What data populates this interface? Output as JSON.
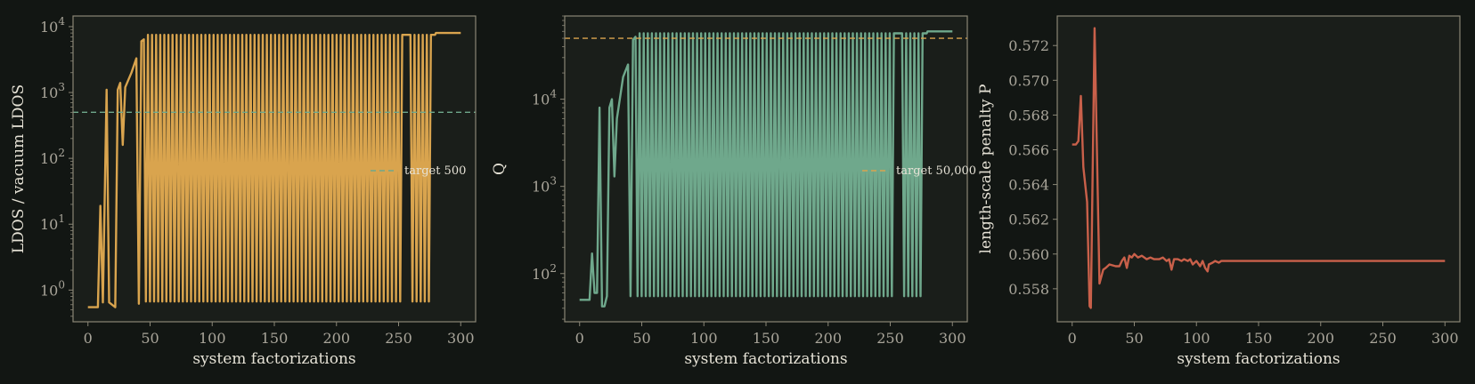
{
  "colors": {
    "background": "#121613",
    "panel": "#1a1e1a",
    "spine": "#8a8676",
    "tick_text": "#a9a59a",
    "label_text": "#e6e2d6"
  },
  "chart_data": [
    {
      "type": "line",
      "xlabel": "system factorizations",
      "ylabel": "LDOS / vacuum LDOS",
      "yscale": "log",
      "xlim": [
        -12,
        312
      ],
      "ylim": [
        0.33,
        14500
      ],
      "xticks": [
        0,
        50,
        100,
        150,
        200,
        250,
        300
      ],
      "yticks": [
        {
          "value": 1,
          "mantissa": "10",
          "exp": "0"
        },
        {
          "value": 10,
          "mantissa": "10",
          "exp": "1"
        },
        {
          "value": 100,
          "mantissa": "10",
          "exp": "2"
        },
        {
          "value": 1000,
          "mantissa": "10",
          "exp": "3"
        },
        {
          "value": 10000,
          "mantissa": "10",
          "exp": "4"
        }
      ],
      "grid": false,
      "legend_position": "center-right",
      "series": [
        {
          "color": "#d9a44e",
          "style": "solid",
          "seed_points": [
            [
              0,
              0.55
            ],
            [
              8,
              0.55
            ],
            [
              10,
              19
            ],
            [
              12,
              0.65
            ],
            [
              15,
              1100
            ],
            [
              17,
              0.65
            ],
            [
              22,
              0.55
            ],
            [
              24,
              1100
            ],
            [
              26,
              1400
            ],
            [
              28,
              160
            ],
            [
              30,
              1200
            ],
            [
              35,
              2000
            ],
            [
              39,
              3300
            ],
            [
              41,
              0.62
            ],
            [
              43,
              6000
            ],
            [
              45,
              6400
            ]
          ],
          "oscillation": {
            "start": 45,
            "end": 280,
            "period": 3.3,
            "high": 7500,
            "low": 0.67,
            "flat_low": [
              [
                255,
                256
              ],
              [
                278,
                279
              ]
            ]
          },
          "tail": [
            [
              280,
              8000
            ],
            [
              300,
              8000
            ]
          ]
        },
        {
          "name": "target 500",
          "color": "#6fa88c",
          "style": "dashed",
          "hline": 500
        }
      ]
    },
    {
      "type": "line",
      "xlabel": "system factorizations",
      "ylabel": "Q",
      "yscale": "log",
      "xlim": [
        -12,
        312
      ],
      "ylim": [
        28,
        90000
      ],
      "xticks": [
        0,
        50,
        100,
        150,
        200,
        250,
        300
      ],
      "yticks": [
        {
          "value": 100,
          "mantissa": "10",
          "exp": "2"
        },
        {
          "value": 1000,
          "mantissa": "10",
          "exp": "3"
        },
        {
          "value": 10000,
          "mantissa": "10",
          "exp": "4"
        }
      ],
      "grid": false,
      "legend_position": "center-right",
      "series": [
        {
          "color": "#6fa88c",
          "style": "solid",
          "seed_points": [
            [
              0,
              50
            ],
            [
              8,
              50
            ],
            [
              10,
              170
            ],
            [
              12,
              60
            ],
            [
              14,
              60
            ],
            [
              16,
              8000
            ],
            [
              18,
              42
            ],
            [
              20,
              42
            ],
            [
              22,
              55
            ],
            [
              24,
              8000
            ],
            [
              26,
              10000
            ],
            [
              28,
              1300
            ],
            [
              30,
              6000
            ],
            [
              35,
              18000
            ],
            [
              39,
              25000
            ],
            [
              41,
              55
            ],
            [
              43,
              48000
            ],
            [
              45,
              52000
            ]
          ],
          "oscillation": {
            "start": 45,
            "end": 280,
            "period": 3.3,
            "high": 57000,
            "low": 55,
            "flat_low": [
              [
                255,
                256
              ],
              [
                278,
                279
              ]
            ]
          },
          "tail": [
            [
              280,
              60000
            ],
            [
              300,
              60000
            ]
          ]
        },
        {
          "name": "target 50,000",
          "color": "#d9a44e",
          "style": "dashed",
          "hline": 50000
        }
      ]
    },
    {
      "type": "line",
      "xlabel": "system factorizations",
      "ylabel": "length-scale penalty P",
      "yscale": "linear",
      "xlim": [
        -12,
        312
      ],
      "ylim": [
        0.5561,
        0.5737
      ],
      "xticks": [
        0,
        50,
        100,
        150,
        200,
        250,
        300
      ],
      "yticks": [
        {
          "value": 0.558,
          "label": "0.558"
        },
        {
          "value": 0.56,
          "label": "0.560"
        },
        {
          "value": 0.562,
          "label": "0.562"
        },
        {
          "value": 0.564,
          "label": "0.564"
        },
        {
          "value": 0.566,
          "label": "0.566"
        },
        {
          "value": 0.568,
          "label": "0.568"
        },
        {
          "value": 0.57,
          "label": "0.570"
        },
        {
          "value": 0.572,
          "label": "0.572"
        }
      ],
      "grid": false,
      "series": [
        {
          "color": "#c9604a",
          "style": "solid",
          "points": [
            [
              0,
              0.5663
            ],
            [
              3,
              0.5663
            ],
            [
              5,
              0.5665
            ],
            [
              7,
              0.5691
            ],
            [
              9,
              0.565
            ],
            [
              12,
              0.563
            ],
            [
              14,
              0.557
            ],
            [
              15,
              0.5569
            ],
            [
              18,
              0.573
            ],
            [
              22,
              0.5583
            ],
            [
              25,
              0.5591
            ],
            [
              27,
              0.5592
            ],
            [
              30,
              0.5594
            ],
            [
              35,
              0.5593
            ],
            [
              38,
              0.5593
            ],
            [
              40,
              0.5596
            ],
            [
              42,
              0.5598
            ],
            [
              44,
              0.5592
            ],
            [
              46,
              0.5599
            ],
            [
              48,
              0.5598
            ],
            [
              50,
              0.56
            ],
            [
              53,
              0.5598
            ],
            [
              56,
              0.5599
            ],
            [
              60,
              0.5597
            ],
            [
              63,
              0.5598
            ],
            [
              66,
              0.5597
            ],
            [
              70,
              0.5597
            ],
            [
              73,
              0.5598
            ],
            [
              76,
              0.5596
            ],
            [
              78,
              0.5597
            ],
            [
              80,
              0.5591
            ],
            [
              82,
              0.5597
            ],
            [
              85,
              0.5597
            ],
            [
              88,
              0.5596
            ],
            [
              90,
              0.5597
            ],
            [
              93,
              0.5596
            ],
            [
              95,
              0.5597
            ],
            [
              97,
              0.5594
            ],
            [
              100,
              0.5596
            ],
            [
              103,
              0.5593
            ],
            [
              105,
              0.5596
            ],
            [
              107,
              0.5592
            ],
            [
              109,
              0.559
            ],
            [
              110,
              0.5594
            ],
            [
              113,
              0.5595
            ],
            [
              115,
              0.5596
            ],
            [
              118,
              0.5595
            ],
            [
              120,
              0.5596
            ],
            [
              140,
              0.5596
            ],
            [
              160,
              0.5596
            ],
            [
              200,
              0.5596
            ],
            [
              250,
              0.5596
            ],
            [
              300,
              0.5596
            ]
          ]
        }
      ]
    }
  ]
}
